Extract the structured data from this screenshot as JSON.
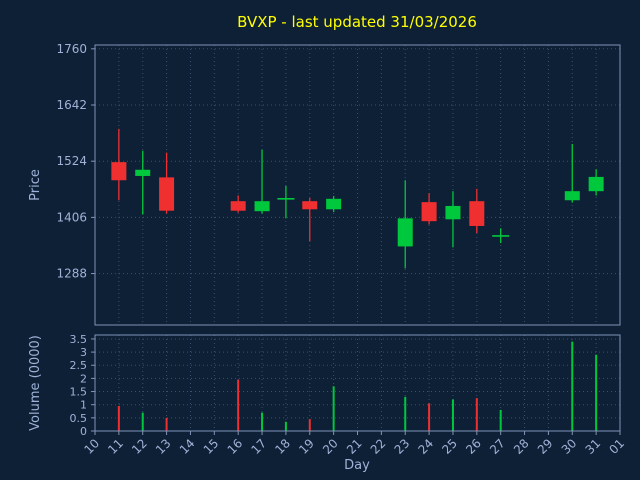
{
  "colors": {
    "background": "#0d2036",
    "title": "#ffff00",
    "axis_text": "#a0b2d8",
    "grid": "#3d4f70",
    "frame": "#8095b8",
    "up": "#00c83c",
    "down": "#f03030"
  },
  "chart_data": {
    "type": "candlestick",
    "title": "BVXP - last updated 31/03/2026",
    "xlabel": "Day",
    "x_ticks": [
      "10",
      "11",
      "12",
      "13",
      "14",
      "15",
      "16",
      "17",
      "18",
      "19",
      "20",
      "21",
      "22",
      "23",
      "24",
      "25",
      "26",
      "27",
      "28",
      "29",
      "30",
      "31",
      "01"
    ],
    "price_axis": {
      "label": "Price",
      "min": 1180,
      "max": 1768,
      "ticks": [
        1288,
        1406,
        1524,
        1642,
        1760
      ]
    },
    "volume_axis": {
      "label": "Volume (0000)",
      "min": 0,
      "max": 3.65,
      "ticks": [
        "0",
        "0.5",
        "1",
        "1.5",
        "2",
        "2.5",
        "3",
        "3.5"
      ]
    },
    "candles": [
      {
        "day": "11",
        "open": 1522,
        "high": 1592,
        "low": 1442,
        "close": 1484,
        "volume": 0.95
      },
      {
        "day": "12",
        "open": 1493,
        "high": 1546,
        "low": 1412,
        "close": 1506,
        "volume": 0.7
      },
      {
        "day": "13",
        "open": 1490,
        "high": 1542,
        "low": 1414,
        "close": 1420,
        "volume": 0.5
      },
      {
        "day": "16",
        "open": 1440,
        "high": 1452,
        "low": 1416,
        "close": 1420,
        "volume": 1.95
      },
      {
        "day": "17",
        "open": 1419,
        "high": 1548,
        "low": 1414,
        "close": 1440,
        "volume": 0.7
      },
      {
        "day": "18",
        "open": 1445,
        "high": 1472,
        "low": 1404,
        "close": 1445,
        "volume": 0.35
      },
      {
        "day": "19",
        "open": 1440,
        "high": 1447,
        "low": 1356,
        "close": 1423,
        "volume": 0.45
      },
      {
        "day": "20",
        "open": 1423,
        "high": 1451,
        "low": 1417,
        "close": 1445,
        "volume": 1.7
      },
      {
        "day": "23",
        "open": 1345,
        "high": 1484,
        "low": 1299,
        "close": 1404,
        "volume": 1.3
      },
      {
        "day": "24",
        "open": 1438,
        "high": 1457,
        "low": 1391,
        "close": 1398,
        "volume": 1.05
      },
      {
        "day": "25",
        "open": 1402,
        "high": 1461,
        "low": 1343,
        "close": 1430,
        "volume": 1.2
      },
      {
        "day": "26",
        "open": 1440,
        "high": 1466,
        "low": 1373,
        "close": 1388,
        "volume": 1.25
      },
      {
        "day": "27",
        "open": 1367,
        "high": 1383,
        "low": 1352,
        "close": 1367,
        "volume": 0.8
      },
      {
        "day": "30",
        "open": 1442,
        "high": 1560,
        "low": 1437,
        "close": 1461,
        "volume": 3.4
      },
      {
        "day": "31",
        "open": 1461,
        "high": 1507,
        "low": 1452,
        "close": 1491,
        "volume": 2.9
      }
    ]
  }
}
